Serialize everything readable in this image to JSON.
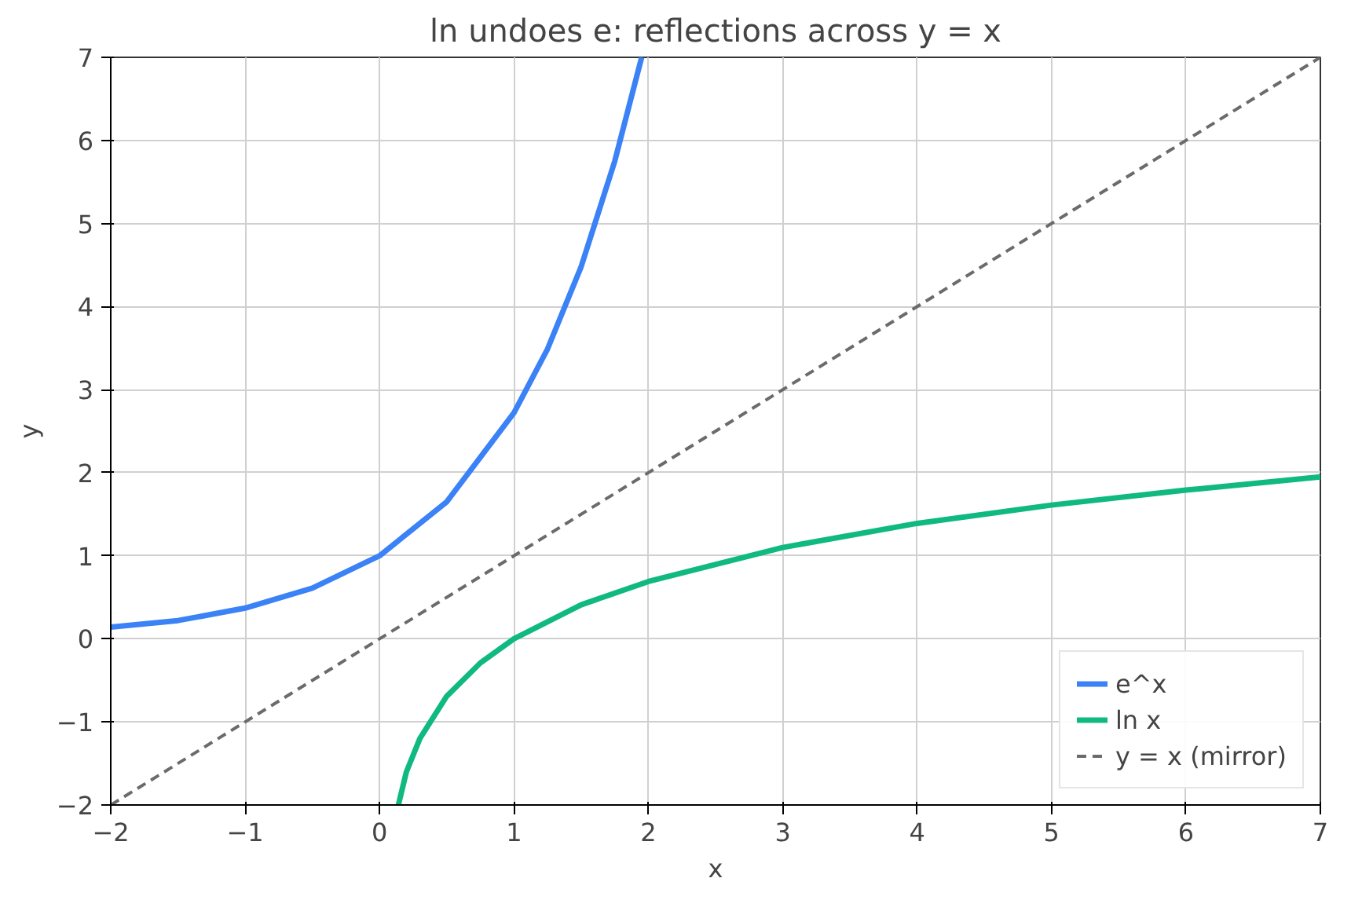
{
  "chart_data": {
    "type": "line",
    "title": "ln undoes e: reflections across y = x",
    "xlabel": "x",
    "ylabel": "y",
    "xlim": [
      -2,
      7
    ],
    "ylim": [
      -2,
      7
    ],
    "xticks": [
      {
        "value": -2,
        "label": "−2"
      },
      {
        "value": -1,
        "label": "−1"
      },
      0,
      1,
      2,
      3,
      4,
      5,
      6,
      7
    ],
    "yticks": [
      {
        "value": -2,
        "label": "−2"
      },
      {
        "value": -1,
        "label": "−1"
      },
      0,
      1,
      2,
      3,
      4,
      5,
      6,
      7
    ],
    "grid": true,
    "legend": "bottom right",
    "line_style": "solid",
    "series": [
      {
        "name": "e^x",
        "color": "#3b82f6",
        "x": [
          -2,
          -1.5,
          -1,
          -0.5,
          0,
          0.5,
          1,
          1.25,
          1.5,
          1.75,
          1.95
        ],
        "values": [
          0.14,
          0.22,
          0.37,
          0.61,
          1,
          1.65,
          2.72,
          3.49,
          4.48,
          5.75,
          7.0
        ]
      },
      {
        "name": "ln x",
        "color": "#10b981",
        "x": [
          0.14,
          0.2,
          0.3,
          0.5,
          0.75,
          1,
          1.5,
          2,
          3,
          4,
          5,
          6,
          7
        ],
        "values": [
          -2,
          -1.6,
          -1.2,
          -0.69,
          -0.29,
          0,
          0.41,
          0.69,
          1.1,
          1.39,
          1.61,
          1.79,
          1.95
        ]
      },
      {
        "name": "y = x (mirror)",
        "color": "#6b6b6b",
        "line_style": "dashed",
        "x": [
          -2,
          7
        ],
        "values": [
          -2,
          7
        ]
      }
    ]
  }
}
